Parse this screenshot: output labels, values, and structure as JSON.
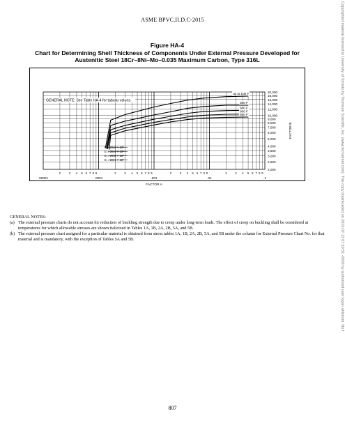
{
  "header": "ASME BPVC.II.D.C-2015",
  "figure": {
    "label": "Figure HA-4",
    "title_line1": "Chart for Determining Shell Thickness of Components Under External Pressure Developed for",
    "title_line2": "Austenitic Steel 18Cr–8Ni–Mo–0.035 Maximum Carbon, Type 316L"
  },
  "chart_data": {
    "type": "line",
    "x_scale": "log",
    "y_scale": "log",
    "xlim": [
      1e-05,
      0.1
    ],
    "ylim": [
      2000,
      20000
    ],
    "xlabel": "FACTOR A",
    "ylabel": "FACTOR B",
    "grid": true,
    "note_box": "GENERAL NOTE: See Table HA-4 for tabular values.",
    "x_decade_labels": [
      ".00001",
      ".0001",
      ".001",
      ".01",
      ".1"
    ],
    "x_minor_labels": [
      "2",
      "3",
      "4",
      "5",
      "6",
      "7",
      "8",
      "9"
    ],
    "y_tick_labels": [
      "20,000",
      "18,000",
      "16,000",
      "14,000",
      "12,000",
      "10,000",
      "9,000",
      "8,000",
      "7,000",
      "6,000",
      "5,000",
      "4,000",
      "3,500",
      "3,000",
      "2,500",
      "2,000"
    ],
    "y_tick_values": [
      20000,
      18000,
      16000,
      14000,
      12000,
      10000,
      9000,
      8000,
      7000,
      6000,
      5000,
      4000,
      3500,
      3000,
      2500,
      2000
    ],
    "modulus_labels": [
      "E = 28.0 × 10⁶",
      "E = 26.4 × 10⁶",
      "E = 25.5 × 10⁶",
      "E = 23.1 × 10⁶"
    ],
    "series": [
      {
        "name": "up to 100 F",
        "x": [
          0.000133,
          0.000165,
          0.0003,
          0.001,
          0.002,
          0.004,
          0.008,
          0.02,
          0.05
        ],
        "y": [
          3800,
          8650,
          10200,
          12800,
          14200,
          15700,
          16700,
          17400,
          17700
        ]
      },
      {
        "name": "300 F",
        "x": [
          0.000139,
          0.000165,
          0.0003,
          0.001,
          0.002,
          0.004,
          0.008,
          0.02,
          0.05
        ],
        "y": [
          3750,
          7400,
          8400,
          10100,
          11100,
          12300,
          13000,
          13500,
          13500
        ]
      },
      {
        "name": "600 F",
        "x": [
          0.00014,
          0.000165,
          0.0003,
          0.001,
          0.002,
          0.004,
          0.008,
          0.02,
          0.05
        ],
        "y": [
          3700,
          6500,
          7400,
          8900,
          9700,
          10600,
          11200,
          11500,
          11600
        ]
      },
      {
        "name": "800 F",
        "x": [
          0.000144,
          0.000165,
          0.0003,
          0.001,
          0.002,
          0.004,
          0.008,
          0.02,
          0.05
        ],
        "y": [
          3650,
          5950,
          6800,
          8100,
          8800,
          9500,
          10000,
          10300,
          10400
        ]
      },
      {
        "name": "850 F",
        "x": [
          0.000155,
          0.000165,
          0.0003,
          0.001,
          0.002,
          0.004,
          0.008,
          0.02,
          0.05
        ],
        "y": [
          3600,
          5500,
          6300,
          7500,
          8200,
          8800,
          9200,
          9400,
          9500
        ]
      }
    ]
  },
  "notes": {
    "title": "GENERAL NOTES:",
    "items": [
      {
        "label": "(a)",
        "text": "The external pressure charts do not account for reduction of buckling strength due to creep under long-term loads. The effect of creep on buckling shall be considered at temperatures for which allowable stresses are shown italicized in Tables 1A, 1B, 2A, 2B, 5A, and 5B."
      },
      {
        "label": "(b)",
        "text": "The external pressure chart assigned for a particular material is obtained from stress tables 1A, 1B, 2A, 2B, 5A, and 5B under the column for External Pressure Chart No. for that material and is mandatory, with the exception of Tables 5A and 5B."
      }
    ]
  },
  "page_number": "807",
  "side_text": "Copyrighted material licensed to University of Toronto by Thomson Scientific, Inc. (www.techstreet.com). This copy downloaded on 2015-07-13 07:19:51 -0500 by authorized user logan ahlstrom. No f"
}
